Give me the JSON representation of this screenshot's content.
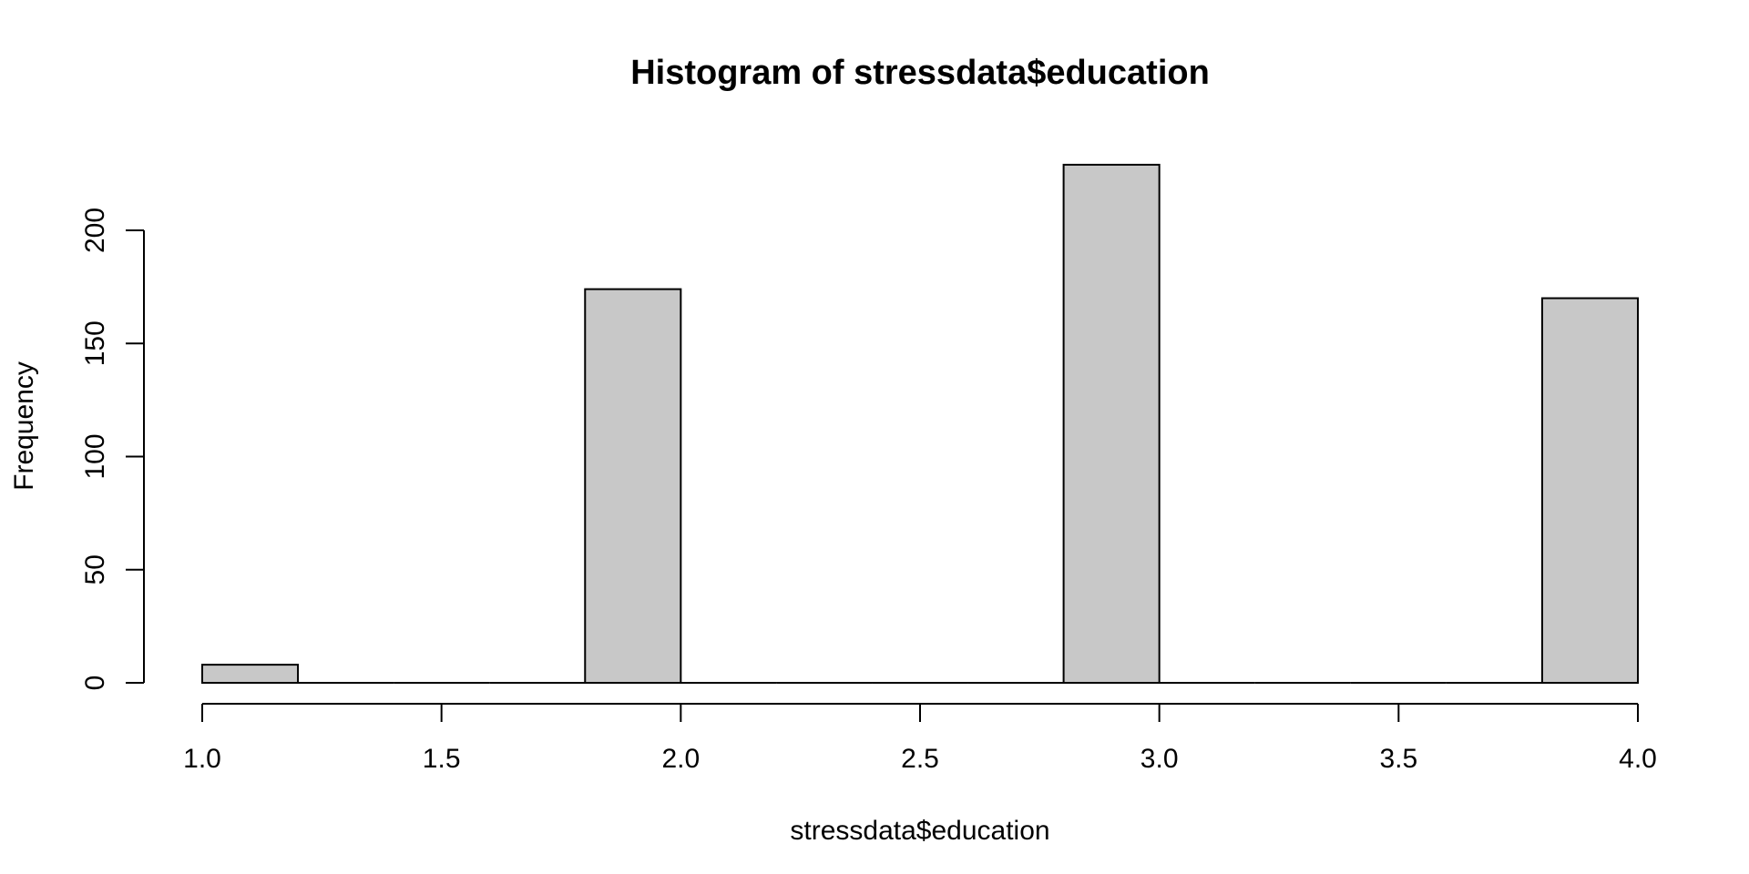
{
  "chart_data": {
    "type": "bar",
    "title": "Histogram of stressdata$education",
    "xlabel": "stressdata$education",
    "ylabel": "Frequency",
    "xlim": [
      1.0,
      4.0
    ],
    "ylim": [
      0,
      230
    ],
    "x_ticks": [
      "1.0",
      "1.5",
      "2.0",
      "2.5",
      "3.0",
      "3.5",
      "4.0"
    ],
    "x_tick_values": [
      1.0,
      1.5,
      2.0,
      2.5,
      3.0,
      3.5,
      4.0
    ],
    "y_ticks": [
      "0",
      "50",
      "100",
      "150",
      "200"
    ],
    "y_tick_values": [
      0,
      50,
      100,
      150,
      200
    ],
    "bins": [
      {
        "start": 1.0,
        "end": 1.2,
        "count": 8
      },
      {
        "start": 1.2,
        "end": 1.4,
        "count": 0
      },
      {
        "start": 1.4,
        "end": 1.6,
        "count": 0
      },
      {
        "start": 1.6,
        "end": 1.8,
        "count": 0
      },
      {
        "start": 1.8,
        "end": 2.0,
        "count": 174
      },
      {
        "start": 2.0,
        "end": 2.2,
        "count": 0
      },
      {
        "start": 2.2,
        "end": 2.4,
        "count": 0
      },
      {
        "start": 2.4,
        "end": 2.6,
        "count": 0
      },
      {
        "start": 2.6,
        "end": 2.8,
        "count": 0
      },
      {
        "start": 2.8,
        "end": 3.0,
        "count": 229
      },
      {
        "start": 3.0,
        "end": 3.2,
        "count": 0
      },
      {
        "start": 3.2,
        "end": 3.4,
        "count": 0
      },
      {
        "start": 3.4,
        "end": 3.6,
        "count": 0
      },
      {
        "start": 3.6,
        "end": 3.8,
        "count": 0
      },
      {
        "start": 3.8,
        "end": 4.0,
        "count": 170
      }
    ],
    "bar_fill": "#c8c8c8",
    "bar_stroke": "#000000",
    "grid": false,
    "legend": "none"
  }
}
